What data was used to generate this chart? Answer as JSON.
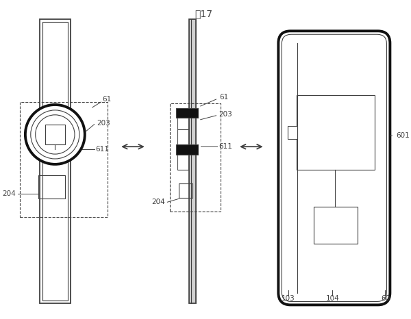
{
  "title": "图17",
  "bg_color": "#ffffff",
  "line_color": "#404040",
  "figsize": [
    6.0,
    4.66
  ],
  "dpi": 100
}
